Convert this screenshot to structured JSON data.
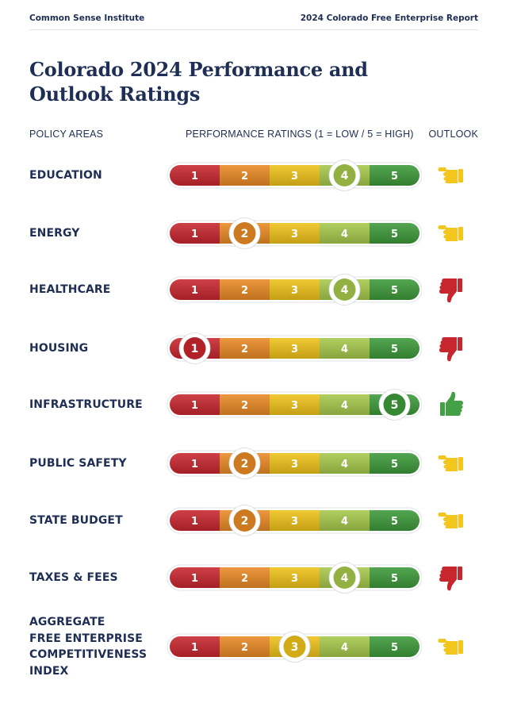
{
  "header": {
    "org": "Common Sense Institute",
    "report": "2024 Colorado Free Enterprise Report"
  },
  "title": "Colorado 2024 Performance and Outlook Ratings",
  "columns": {
    "policy": "POLICY AREAS",
    "performance": "PERFORMANCE RATINGS (1 = LOW / 5 = HIGH)",
    "outlook": "OUTLOOK"
  },
  "scale": {
    "labels": [
      "1",
      "2",
      "3",
      "4",
      "5"
    ],
    "colors": [
      "#c8262e",
      "#e98a24",
      "#efc21a",
      "#a6c94b",
      "#3d9a3a"
    ],
    "outlook_colors": {
      "up": "#43a047",
      "neutral": "#f2c61c",
      "down": "#c8262e"
    }
  },
  "rows": [
    {
      "label": "EDUCATION",
      "rating": 4,
      "outlook": "neutral"
    },
    {
      "label": "ENERGY",
      "rating": 2,
      "outlook": "neutral"
    },
    {
      "label": "HEALTHCARE",
      "rating": 4,
      "outlook": "down"
    },
    {
      "label": "HOUSING",
      "rating": 1,
      "outlook": "down"
    },
    {
      "label": "INFRASTRUCTURE",
      "rating": 5,
      "outlook": "up"
    },
    {
      "label": "PUBLIC SAFETY",
      "rating": 2,
      "outlook": "neutral"
    },
    {
      "label": "STATE BUDGET",
      "rating": 2,
      "outlook": "neutral"
    },
    {
      "label": "TAXES & FEES",
      "rating": 4,
      "outlook": "down"
    },
    {
      "label": "AGGREGATE\nFREE ENTERPRISE\nCOMPETITIVENESS\nINDEX",
      "rating": 3,
      "outlook": "neutral"
    }
  ]
}
